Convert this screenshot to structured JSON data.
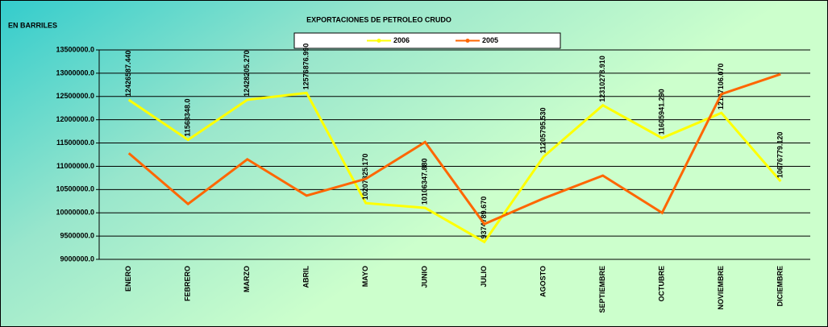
{
  "chart_data": {
    "type": "line",
    "title": "EXPORTACIONES DE PETROLEO CRUDO",
    "y_label": "EN BARRILES",
    "categories": [
      "ENERO",
      "FEBRERO",
      "MARZO",
      "ABRIL",
      "MAYO",
      "JUNIO",
      "JULIO",
      "AGOSTO",
      "SEPTIEMBRE",
      "OCTUBRE",
      "NOVIEMBRE",
      "DICIEMBRE"
    ],
    "series": [
      {
        "name": "2006",
        "color": "#ffff00",
        "values": [
          12426587.44,
          11568348.0,
          12428205.27,
          12576876.99,
          10207825.17,
          10106347.88,
          9374789.67,
          11205795.53,
          12310278.91,
          11605941.29,
          12147106.07,
          10676779.12
        ],
        "value_labels": [
          "12426587.440",
          "11568348.0",
          "12428205.270",
          "12576876.990",
          "10207825.170",
          "10106347.880",
          "9374789.670",
          "11205795.530",
          "12310278.910",
          "11605941.290",
          "12147106.070",
          "10676779.120"
        ]
      },
      {
        "name": "2005",
        "color": "#ff6600",
        "values": [
          11280000,
          10190000,
          11150000,
          10370000,
          10730000,
          11520000,
          9760000,
          10310000,
          10800000,
          10000000,
          12550000,
          12980000
        ]
      }
    ],
    "ylim": [
      9000000,
      13500000
    ],
    "yticks": [
      {
        "value": 9000000,
        "label": "9000000.0"
      },
      {
        "value": 9500000,
        "label": "9500000.0"
      },
      {
        "value": 10000000,
        "label": "10000000.0"
      },
      {
        "value": 10500000,
        "label": "10500000.0"
      },
      {
        "value": 11000000,
        "label": "11000000.0"
      },
      {
        "value": 11500000,
        "label": "11500000.0"
      },
      {
        "value": 12000000,
        "label": "12000000.0"
      },
      {
        "value": 12500000,
        "label": "12500000.0"
      },
      {
        "value": 13000000,
        "label": "13000000.0"
      },
      {
        "value": 13500000,
        "label": "13500000.0"
      }
    ],
    "grid": true,
    "legend": "top"
  }
}
